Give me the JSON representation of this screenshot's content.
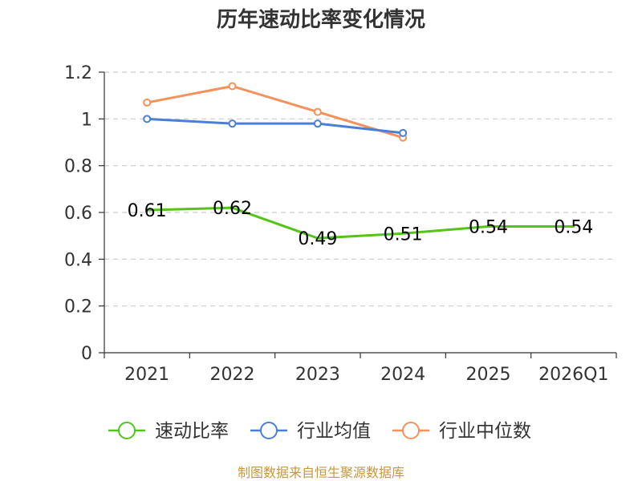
{
  "chart_data": {
    "type": "line",
    "title": "历年速动比率变化情况",
    "categories": [
      "2021",
      "2022",
      "2023",
      "2024",
      "2025",
      "2026Q1"
    ],
    "ylim": [
      0,
      1.2
    ],
    "yticks": [
      "0",
      "0.2",
      "0.4",
      "0.6",
      "0.8",
      "1",
      "1.2"
    ],
    "grid": true,
    "legend_position": "bottom",
    "series": [
      {
        "name": "速动比率",
        "color": "#52c41a",
        "values": [
          0.61,
          0.62,
          0.49,
          0.51,
          0.54,
          0.54
        ],
        "labels": [
          "0.61",
          "0.62",
          "0.49",
          "0.51",
          "0.54",
          "0.54"
        ]
      },
      {
        "name": "行业均值",
        "color": "#4a7fd8",
        "values": [
          1.0,
          0.98,
          0.98,
          0.94,
          null,
          null
        ]
      },
      {
        "name": "行业中位数",
        "color": "#f5915a",
        "values": [
          1.07,
          1.14,
          1.03,
          0.92,
          null,
          null
        ]
      }
    ],
    "source": "制图数据来自恒生聚源数据库"
  }
}
